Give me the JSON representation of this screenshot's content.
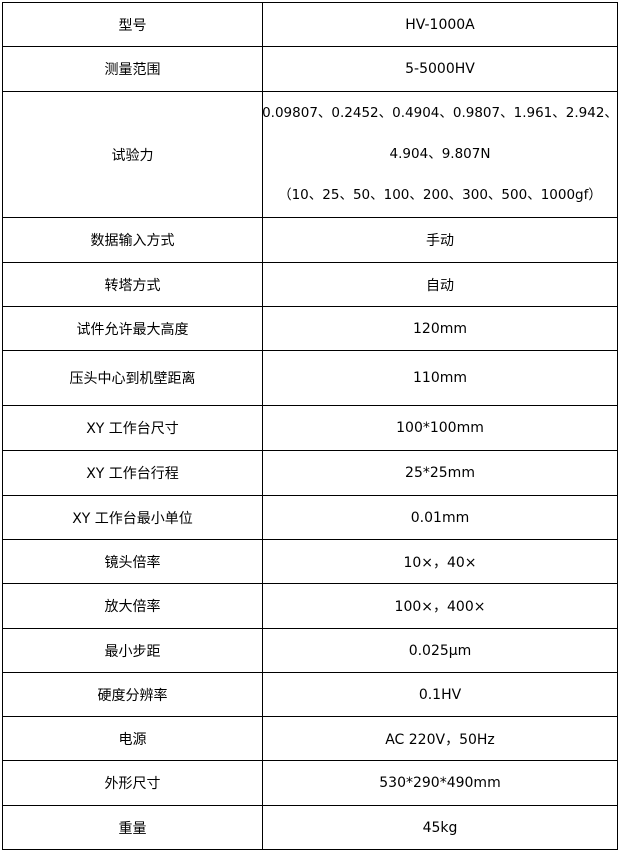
{
  "table": {
    "rows": [
      [
        "型号",
        "HV-1000A"
      ],
      [
        "测量范围",
        "5-5000HV"
      ],
      [
        "试验力",
        [
          "0.09807、0.2452、0.4904、0.9807、1.961、2.942、",
          "4.904、9.807N",
          "（10、25、50、100、200、300、500、1000gf）"
        ]
      ],
      [
        "数据输入方式",
        "手动"
      ],
      [
        "转塔方式",
        "自动"
      ],
      [
        "试件允许最大高度",
        "120mm"
      ],
      [
        "压头中心到机壁距离",
        "110mm"
      ],
      [
        "XY 工作台尺寸",
        "100*100mm"
      ],
      [
        "XY 工作台行程",
        "25*25mm"
      ],
      [
        "XY 工作台最小单位",
        "0.01mm"
      ],
      [
        "镜头倍率",
        "10×，40×"
      ],
      [
        "放大倍率",
        "100×，400×"
      ],
      [
        "最小步距",
        "0.025μm"
      ],
      [
        "硬度分辨率",
        "0.1HV"
      ],
      [
        "电源",
        "AC 220V，50Hz"
      ],
      [
        "外形尺寸",
        "530*290*490mm"
      ],
      [
        "重量",
        "45kg"
      ]
    ]
  }
}
